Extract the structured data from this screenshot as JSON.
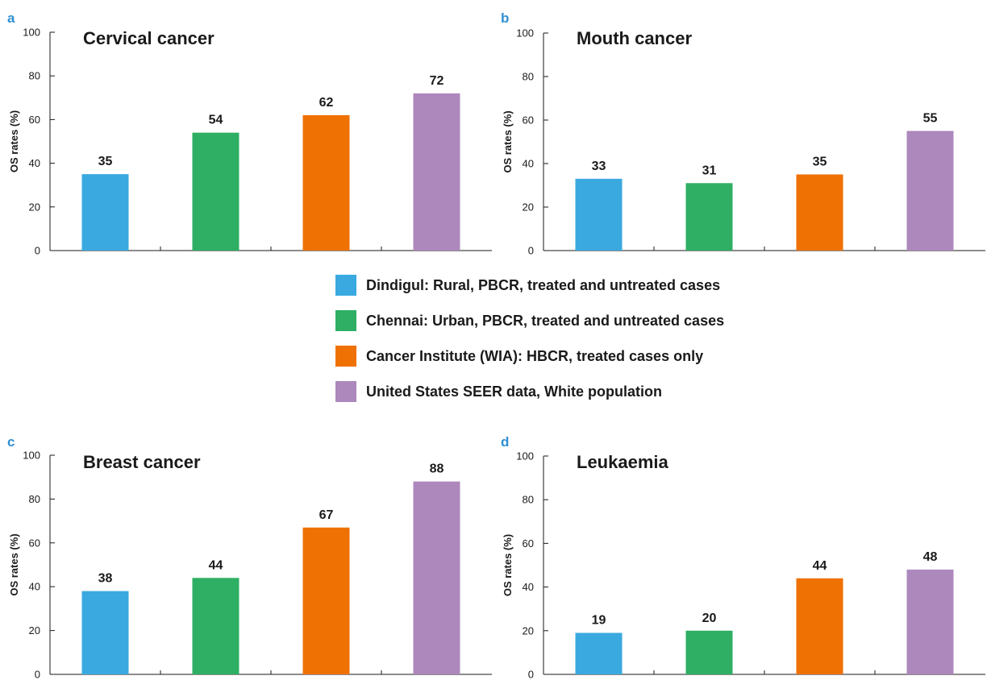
{
  "colors": {
    "panel_letter": "#2f8fd1",
    "axis": "#1a1a1a",
    "series": [
      "#3aa9e0",
      "#2eaf63",
      "#ef7103",
      "#ad88bd"
    ]
  },
  "legend": [
    {
      "label": "Dindigul: Rural, PBCR, treated and untreated cases"
    },
    {
      "label": "Chennai: Urban, PBCR, treated and untreated cases"
    },
    {
      "label": "Cancer Institute (WIA): HBCR, treated cases only"
    },
    {
      "label": "United States SEER data, White population"
    }
  ],
  "chart_data": [
    {
      "panel": "a",
      "type": "bar",
      "title": "Cervical cancer",
      "ylabel": "OS rates (%)",
      "ylim": [
        0,
        100
      ],
      "yticks": [
        0,
        20,
        40,
        60,
        80,
        100
      ],
      "values": [
        35,
        54,
        62,
        72
      ],
      "data_labels": [
        "35",
        "54",
        "62",
        "72"
      ]
    },
    {
      "panel": "b",
      "type": "bar",
      "title": "Mouth cancer",
      "ylabel": "OS rates (%)",
      "ylim": [
        0,
        100
      ],
      "yticks": [
        0,
        20,
        40,
        60,
        80,
        100
      ],
      "values": [
        33,
        31,
        35,
        55
      ],
      "data_labels": [
        "33",
        "31",
        "35",
        "55"
      ]
    },
    {
      "panel": "c",
      "type": "bar",
      "title": "Breast cancer",
      "ylabel": "OS rates (%)",
      "ylim": [
        0,
        100
      ],
      "yticks": [
        0,
        20,
        40,
        60,
        80,
        100
      ],
      "values": [
        38,
        44,
        67,
        88
      ],
      "data_labels": [
        "38",
        "44",
        "67",
        "88"
      ]
    },
    {
      "panel": "d",
      "type": "bar",
      "title": "Leukaemia",
      "ylabel": "OS rates (%)",
      "ylim": [
        0,
        100
      ],
      "yticks": [
        0,
        20,
        40,
        60,
        80,
        100
      ],
      "values": [
        19,
        20,
        44,
        48
      ],
      "data_labels": [
        "19",
        "20",
        "44",
        "48"
      ]
    }
  ]
}
